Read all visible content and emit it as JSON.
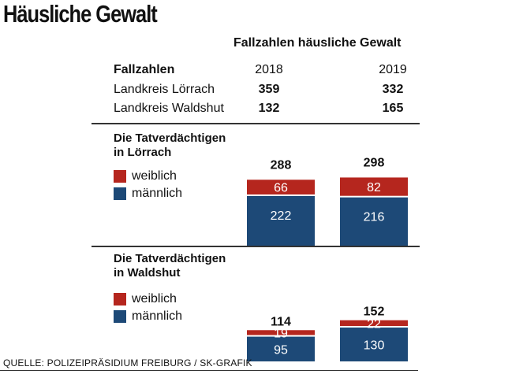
{
  "headline": "Häusliche Gewalt",
  "subtitle": "Fallzahlen häusliche Gewalt",
  "table": {
    "header": "Fallzahlen",
    "years": [
      "2018",
      "2019"
    ],
    "rows": [
      {
        "name": "Landkreis Lörrach",
        "values": [
          "359",
          "332"
        ]
      },
      {
        "name": "Landkreis Waldshut",
        "values": [
          "132",
          "165"
        ]
      }
    ]
  },
  "colors": {
    "weiblich": "#b5261e",
    "maennlich": "#1d4977"
  },
  "legend": {
    "female": "weiblich",
    "male": "männlich"
  },
  "chart_data": [
    {
      "type": "bar",
      "title": "Die Tatverdächtigen in Lörrach",
      "title_lines": [
        "Die Tatverdächtigen",
        "in Lörrach"
      ],
      "categories": [
        "2018",
        "2019"
      ],
      "series": [
        {
          "name": "männlich",
          "values": [
            222,
            216
          ]
        },
        {
          "name": "weiblich",
          "values": [
            66,
            82
          ]
        }
      ],
      "totals": [
        288,
        298
      ],
      "stacked": true,
      "xlabel": "",
      "ylabel": ""
    },
    {
      "type": "bar",
      "title": "Die Tatverdächtigen in Waldshut",
      "title_lines": [
        "Die Tatverdächtigen",
        "in Waldshut"
      ],
      "categories": [
        "2018",
        "2019"
      ],
      "series": [
        {
          "name": "männlich",
          "values": [
            95,
            130
          ]
        },
        {
          "name": "weiblich",
          "values": [
            19,
            22
          ]
        }
      ],
      "totals": [
        114,
        152
      ],
      "stacked": true,
      "xlabel": "",
      "ylabel": ""
    }
  ],
  "footer": "QUELLE: POLIZEIPRÄSIDIUM FREIBURG / SK-GRAFIK"
}
